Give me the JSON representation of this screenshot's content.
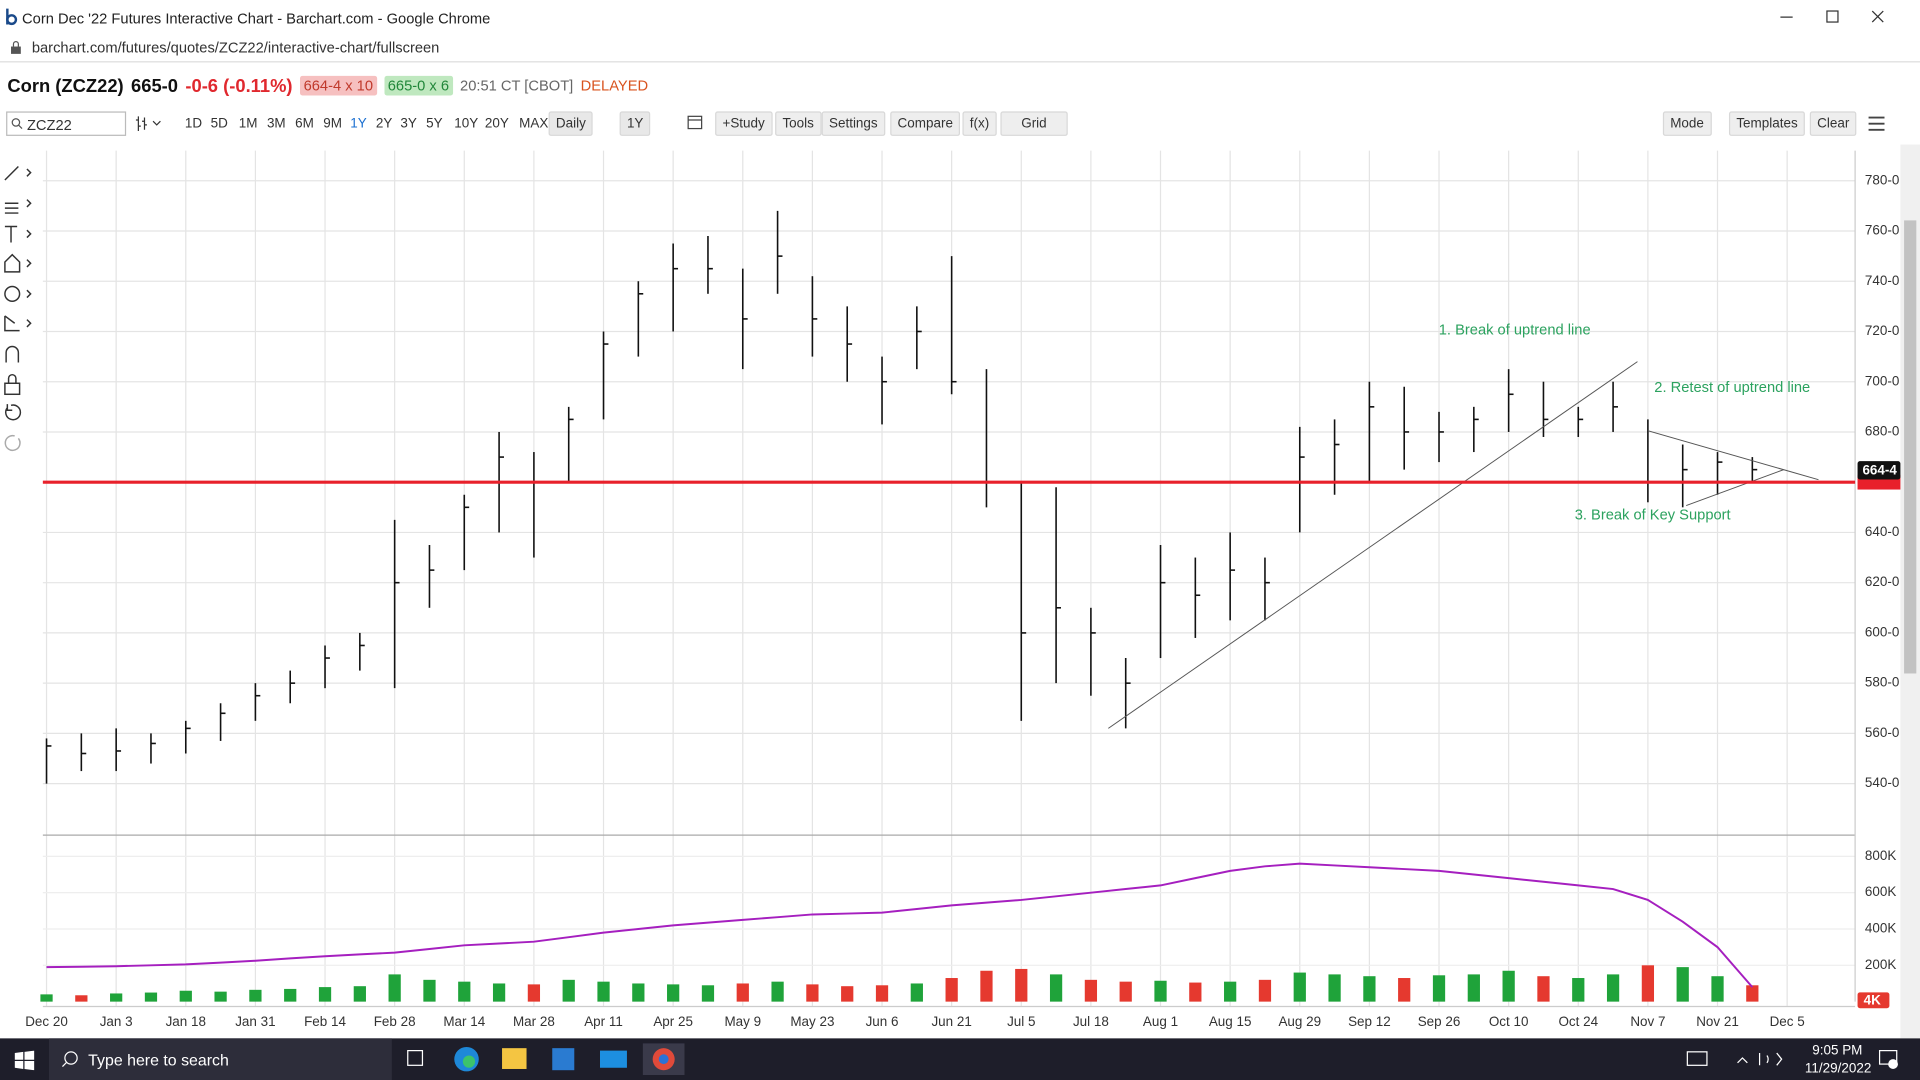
{
  "window": {
    "title": "Corn Dec '22 Futures Interactive Chart - Barchart.com - Google Chrome",
    "url": "barchart.com/futures/quotes/ZCZ22/interactive-chart/fullscreen"
  },
  "quote": {
    "symbol": "Corn (ZCZ22)",
    "last": "665-0",
    "change": "-0-6 (-0.11%)",
    "bid": "664-4 x 10",
    "ask": "665-0 x 6",
    "time": "20:51 CT [CBOT]",
    "status": "DELAYED"
  },
  "toolbar": {
    "search": "ZCZ22",
    "periods": [
      "1D",
      "5D",
      "1M",
      "3M",
      "6M",
      "9M",
      "1Y",
      "2Y",
      "3Y",
      "5Y",
      "10Y",
      "20Y",
      "MAX"
    ],
    "selected_index": 6,
    "interval": "Daily",
    "range": "1Y",
    "buttons": [
      "+Study",
      "Tools",
      "Settings",
      "Compare",
      "f(x)",
      "Grid"
    ],
    "right_buttons": [
      "Mode",
      "Templates",
      "Clear"
    ]
  },
  "chart_data": [
    {
      "type": "ohlc",
      "color": "#111111",
      "categories": [
        "Dec 20",
        null,
        "Jan 3",
        null,
        "Jan 18",
        null,
        "Jan 31",
        null,
        "Feb 14",
        null,
        "Feb 28",
        null,
        "Mar 14",
        null,
        "Mar 28",
        null,
        "Apr 11",
        null,
        "Apr 25",
        null,
        "May 9",
        null,
        "May 23",
        null,
        "Jun 6",
        null,
        "Jun 21",
        null,
        "Jul 5",
        null,
        "Jul 18",
        null,
        "Aug 1",
        null,
        "Aug 15",
        null,
        "Aug 29",
        null,
        "Sep 12",
        null,
        "Sep 26",
        null,
        "Oct 10",
        null,
        "Oct 24",
        null,
        "Nov 7",
        null,
        "Nov 21",
        null,
        "Dec 5"
      ],
      "high": [
        558,
        560,
        562,
        560,
        565,
        572,
        580,
        585,
        595,
        600,
        645,
        635,
        655,
        680,
        672,
        690,
        720,
        740,
        755,
        758,
        745,
        768,
        742,
        730,
        710,
        730,
        750,
        705,
        660,
        658,
        610,
        590,
        635,
        630,
        640,
        630,
        682,
        685,
        700,
        698,
        688,
        690,
        705,
        700,
        690,
        700,
        685,
        675,
        672,
        670,
        null
      ],
      "low": [
        540,
        545,
        545,
        548,
        552,
        557,
        565,
        572,
        578,
        585,
        578,
        610,
        625,
        640,
        630,
        660,
        685,
        710,
        720,
        735,
        705,
        735,
        710,
        700,
        683,
        705,
        695,
        650,
        565,
        580,
        575,
        562,
        590,
        598,
        605,
        605,
        640,
        655,
        660,
        665,
        668,
        672,
        680,
        678,
        678,
        680,
        652,
        650,
        655,
        660,
        null
      ],
      "close": [
        555,
        552,
        553,
        556,
        562,
        568,
        575,
        580,
        590,
        595,
        620,
        625,
        650,
        670,
        660,
        685,
        715,
        735,
        745,
        745,
        725,
        750,
        725,
        715,
        700,
        720,
        700,
        660,
        600,
        610,
        600,
        580,
        620,
        615,
        625,
        620,
        670,
        675,
        690,
        680,
        680,
        685,
        695,
        685,
        685,
        690,
        660,
        665,
        668,
        665,
        null
      ],
      "ylim": [
        520,
        792
      ],
      "yticks": [
        {
          "value": 540,
          "label": "540-0"
        },
        {
          "value": 560,
          "label": "560-0"
        },
        {
          "value": 580,
          "label": "580-0"
        },
        {
          "value": 600,
          "label": "600-0"
        },
        {
          "value": 620,
          "label": "620-0"
        },
        {
          "value": 640,
          "label": "640-0"
        },
        {
          "value": 660,
          "label": "660-0"
        },
        {
          "value": 680,
          "label": "680-0"
        },
        {
          "value": 700,
          "label": "700-0"
        },
        {
          "value": 720,
          "label": "720-0"
        },
        {
          "value": 740,
          "label": "740-0"
        },
        {
          "value": 760,
          "label": "760-0"
        },
        {
          "value": 780,
          "label": "780-0"
        }
      ],
      "grid": true,
      "support": {
        "value": 660,
        "color": "#e8212b"
      },
      "last_price": {
        "value": 664.5,
        "label": "664-4"
      },
      "trendlines": [
        {
          "x": [
            30.5,
            45.7
          ],
          "y": [
            562,
            708
          ]
        },
        {
          "x": [
            46.0,
            50.9
          ],
          "y": [
            680.5,
            661
          ]
        },
        {
          "x": [
            47.1,
            49.9
          ],
          "y": [
            650.7,
            665
          ]
        }
      ],
      "annotations": [
        "1. Break of uptrend line",
        "2. Retest of uptrend line",
        "3. Break of Key Support"
      ],
      "annotation_color": "#2ca25f"
    },
    {
      "type": "bar",
      "up_color": "#1fa33a",
      "down_color": "#e5392f",
      "series": [
        {
          "type": "bar",
          "values": [
            40000,
            35000,
            45000,
            50000,
            60000,
            55000,
            65000,
            70000,
            80000,
            85000,
            150000,
            120000,
            110000,
            100000,
            95000,
            120000,
            110000,
            100000,
            95000,
            90000,
            100000,
            110000,
            95000,
            85000,
            90000,
            100000,
            130000,
            170000,
            180000,
            150000,
            120000,
            110000,
            115000,
            105000,
            110000,
            120000,
            160000,
            150000,
            140000,
            130000,
            145000,
            150000,
            170000,
            140000,
            130000,
            150000,
            200000,
            190000,
            140000,
            90000,
            null
          ]
        },
        {
          "type": "line",
          "color": "#a51fbf",
          "values": [
            190000,
            192000,
            195000,
            200000,
            205000,
            215000,
            225000,
            238000,
            250000,
            260000,
            270000,
            290000,
            310000,
            320000,
            330000,
            355000,
            380000,
            400000,
            420000,
            435000,
            450000,
            465000,
            480000,
            485000,
            490000,
            510000,
            530000,
            545000,
            560000,
            580000,
            600000,
            620000,
            640000,
            680000,
            720000,
            745000,
            760000,
            750000,
            740000,
            730000,
            720000,
            700000,
            680000,
            660000,
            640000,
            620000,
            560000,
            440000,
            300000,
            80000,
            null
          ]
        }
      ],
      "ylim": [
        0,
        890000
      ],
      "yticks": [
        {
          "value": 200000,
          "label": "200K"
        },
        {
          "value": 400000,
          "label": "400K"
        },
        {
          "value": 600000,
          "label": "600K"
        },
        {
          "value": 800000,
          "label": "800K"
        }
      ],
      "last_value": {
        "value": 4000,
        "label": "4K"
      }
    }
  ],
  "taskbar": {
    "search": "Type here to search",
    "time": "9:05 PM",
    "date": "11/29/2022"
  }
}
